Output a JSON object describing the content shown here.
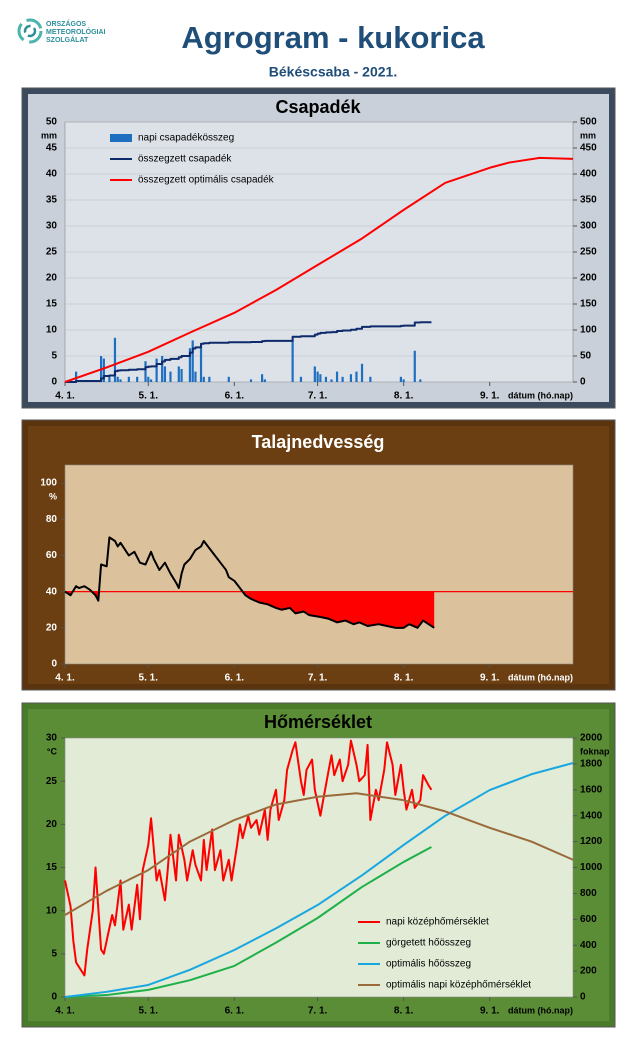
{
  "header": {
    "logo": [
      "ORSZÁGOS",
      "METEOROLÓGIAI",
      "SZOLGÁLAT"
    ],
    "title": "Agrogram - kukorica",
    "subtitle": "Békéscsaba - 2021."
  },
  "chart_data": [
    {
      "type": "combo",
      "title": "Csapadék",
      "background": "#3b4a5d",
      "panel_color": "#c9d0d9",
      "plot_background": "#dde2e9",
      "text_color": "#000000",
      "grid": true,
      "legend": "upper left",
      "xlim": [
        0,
        183
      ],
      "xticks": [
        {
          "value": 0,
          "label": "4. 1."
        },
        {
          "value": 30,
          "label": "5. 1."
        },
        {
          "value": 61,
          "label": "6. 1."
        },
        {
          "value": 91,
          "label": "7. 1."
        },
        {
          "value": 122,
          "label": "8. 1."
        },
        {
          "value": 153,
          "label": "9. 1."
        }
      ],
      "xlabel": "dátum (hó.nap)",
      "ylim": [
        0,
        50
      ],
      "yticks": [
        0,
        5,
        10,
        15,
        20,
        25,
        30,
        35,
        40,
        45,
        50
      ],
      "ylabel": "mm",
      "y2lim": [
        0,
        500
      ],
      "y2ticks": [
        0,
        50,
        100,
        150,
        200,
        250,
        300,
        350,
        400,
        450,
        500
      ],
      "y2label": "mm",
      "series": [
        {
          "name": "napi csapadékösszeg",
          "type": "bar",
          "color": "#1f6fc0",
          "x": [
            4,
            13,
            14,
            16,
            18,
            19,
            20,
            23,
            26,
            29,
            30,
            31,
            33,
            35,
            36,
            38,
            41,
            42,
            45,
            46,
            47,
            49,
            50,
            52,
            59,
            67,
            71,
            72,
            82,
            85,
            90,
            91,
            92,
            94,
            96,
            98,
            100,
            103,
            105,
            107,
            110,
            121,
            122,
            126,
            128
          ],
          "values": [
            2,
            5,
            4.5,
            1,
            8.5,
            1,
            0.5,
            1,
            1,
            4,
            1,
            0.5,
            4.5,
            5,
            3,
            2,
            3,
            2.5,
            6.5,
            8,
            2,
            7,
            1,
            1,
            1,
            0.5,
            1.5,
            0.5,
            8,
            1,
            3,
            2,
            1.5,
            1,
            0.5,
            2,
            1,
            1.5,
            2,
            3.5,
            1,
            1,
            0.5,
            6,
            0.5
          ]
        },
        {
          "name": "összegzett csapadék",
          "type": "step",
          "axis": "y2",
          "color": "#0d2a6b",
          "x": [
            0,
            4,
            13,
            14,
            16,
            18,
            19,
            20,
            23,
            26,
            29,
            30,
            31,
            33,
            35,
            36,
            38,
            41,
            42,
            45,
            46,
            47,
            49,
            50,
            52,
            59,
            67,
            71,
            72,
            82,
            85,
            90,
            91,
            92,
            94,
            96,
            98,
            100,
            103,
            105,
            107,
            110,
            121,
            122,
            126,
            128,
            132
          ],
          "values": [
            0,
            2,
            7,
            11.5,
            12.5,
            21,
            22,
            22.5,
            23.5,
            24.5,
            28.5,
            29.5,
            30,
            34.5,
            39.5,
            42.5,
            44.5,
            47.5,
            50,
            56.5,
            64.5,
            66.5,
            73.5,
            74.5,
            75.5,
            76.5,
            77,
            78.5,
            79,
            87,
            88,
            91,
            93,
            94.5,
            95.5,
            96,
            98,
            99,
            100.5,
            102.5,
            106,
            107,
            108,
            108.5,
            114.5,
            115,
            115
          ]
        },
        {
          "name": "összegzett optimális  csapadék",
          "type": "line",
          "axis": "y2",
          "color": "#ff0000",
          "x": [
            0,
            15,
            30,
            45,
            61,
            76,
            91,
            107,
            122,
            137,
            153,
            160,
            171,
            183
          ],
          "values": [
            0,
            28,
            58,
            95,
            133,
            177,
            225,
            276,
            331,
            383,
            412,
            422,
            431,
            429
          ]
        }
      ]
    },
    {
      "type": "line",
      "title": "Talajnedvesség",
      "background": "#5a340f",
      "panel_color": "#6b3f12",
      "plot_background": "#dcc29c",
      "text_color": "#ffffff",
      "grid": false,
      "xlim": [
        0,
        183
      ],
      "xticks": [
        {
          "value": 0,
          "label": "4. 1."
        },
        {
          "value": 30,
          "label": "5. 1."
        },
        {
          "value": 61,
          "label": "6. 1."
        },
        {
          "value": 91,
          "label": "7. 1."
        },
        {
          "value": 122,
          "label": "8. 1."
        },
        {
          "value": 153,
          "label": "9. 1."
        }
      ],
      "xlabel": "dátum (hó.nap)",
      "ylim": [
        0,
        110
      ],
      "yticks": [
        0,
        20,
        40,
        60,
        80,
        100
      ],
      "ylabel": "%",
      "threshold": 40,
      "threshold_color": "#ff0000",
      "fill_color": "#ff0000",
      "color": "#000000",
      "x": [
        0,
        2,
        4,
        5,
        7,
        9,
        11,
        12,
        13,
        15,
        16,
        18,
        19,
        20,
        23,
        25,
        27,
        29,
        31,
        32,
        34,
        36,
        38,
        40,
        41,
        42,
        43,
        45,
        47,
        49,
        50,
        52,
        54,
        56,
        58,
        59,
        61,
        63,
        65,
        67,
        70,
        73,
        76,
        78,
        81,
        83,
        86,
        88,
        92,
        95,
        98,
        101,
        104,
        106,
        109,
        113,
        116,
        119,
        122,
        124,
        127,
        129,
        131,
        133
      ],
      "values": [
        40,
        38,
        43,
        42,
        43,
        41,
        38,
        35,
        55,
        54,
        70,
        68,
        65,
        67,
        60,
        62,
        56,
        55,
        62,
        58,
        52,
        56,
        50,
        45,
        42,
        50,
        55,
        58,
        63,
        65,
        68,
        64,
        60,
        56,
        52,
        48,
        46,
        42,
        38,
        36,
        34,
        33,
        31,
        30,
        31,
        28,
        29,
        27,
        26,
        25,
        23,
        24,
        22,
        23,
        21,
        22,
        21,
        20,
        20,
        22,
        20,
        24,
        22,
        20
      ]
    },
    {
      "type": "line",
      "title": "Hőmérséklet",
      "background": "#4a7b2a",
      "panel_color": "#5b8d36",
      "plot_background": "#e1ebd6",
      "text_color": "#000000",
      "grid": false,
      "legend": "lower right",
      "xlim": [
        0,
        183
      ],
      "xticks": [
        {
          "value": 0,
          "label": "4. 1."
        },
        {
          "value": 30,
          "label": "5. 1."
        },
        {
          "value": 61,
          "label": "6. 1."
        },
        {
          "value": 91,
          "label": "7. 1."
        },
        {
          "value": 122,
          "label": "8. 1."
        },
        {
          "value": 153,
          "label": "9. 1."
        }
      ],
      "xlabel": "dátum (hó.nap)",
      "ylim": [
        0,
        30
      ],
      "yticks": [
        0,
        5,
        10,
        15,
        20,
        25,
        30
      ],
      "ylabel": "°C",
      "y2lim": [
        0,
        2000
      ],
      "y2ticks": [
        0,
        200,
        400,
        600,
        800,
        1000,
        1200,
        1400,
        1600,
        1800,
        2000
      ],
      "y2label": "foknap",
      "series": [
        {
          "name": "napi középhőmérséklet",
          "type": "line",
          "color": "#ff0000",
          "x": [
            0,
            2,
            3,
            4,
            5,
            7,
            8,
            10,
            11,
            13,
            14,
            15,
            17,
            18,
            20,
            21,
            23,
            24,
            26,
            27,
            28,
            30,
            31,
            33,
            34,
            36,
            37,
            38,
            40,
            41,
            43,
            44,
            46,
            47,
            49,
            50,
            51,
            53,
            54,
            56,
            57,
            59,
            60,
            62,
            63,
            64,
            66,
            67,
            69,
            70,
            72,
            73,
            74,
            76,
            77,
            79,
            80,
            82,
            83,
            85,
            86,
            87,
            89,
            90,
            92,
            93,
            95,
            96,
            97,
            99,
            100,
            102,
            103,
            105,
            106,
            108,
            109,
            110,
            112,
            113,
            115,
            116,
            118,
            119,
            121,
            122,
            123,
            125,
            126,
            128,
            129,
            131,
            132
          ],
          "values": [
            13.5,
            10.5,
            6.5,
            4,
            3.5,
            2.5,
            5.5,
            10,
            15,
            5.5,
            5,
            6.5,
            9.5,
            8.3,
            13.5,
            7.8,
            10.7,
            7.8,
            13,
            9,
            14.7,
            17.6,
            20.7,
            13.5,
            14.7,
            11.2,
            14.7,
            18.8,
            13.5,
            18.8,
            15.9,
            13.5,
            17,
            15.3,
            13.5,
            18.2,
            14.7,
            19.4,
            14.7,
            17,
            13.5,
            15.9,
            13.5,
            17.6,
            20,
            18.4,
            21,
            19.6,
            20.5,
            18.8,
            21.7,
            18.2,
            21.7,
            24,
            20.5,
            22.8,
            26.3,
            28.6,
            29.5,
            25,
            23.4,
            26.3,
            27.5,
            24,
            21,
            22.8,
            26.3,
            28,
            25.7,
            27.5,
            25,
            26.9,
            29.7,
            26.9,
            25,
            25.7,
            29.2,
            20.5,
            24,
            22.8,
            26.3,
            29.5,
            26.9,
            23.4,
            26.9,
            24,
            21.7,
            24,
            21.9,
            22.8,
            25.7,
            24.5,
            24
          ]
        },
        {
          "name": "görgetett hőösszeg",
          "type": "line",
          "axis": "y2",
          "color": "#1fb04a",
          "x": [
            0,
            15,
            30,
            45,
            61,
            76,
            91,
            107,
            122,
            132
          ],
          "values": [
            0,
            15,
            55,
            130,
            240,
            420,
            610,
            850,
            1043,
            1158
          ]
        },
        {
          "name": "optimális hőösszeg",
          "type": "line",
          "axis": "y2",
          "color": "#1aa7e0",
          "x": [
            0,
            15,
            30,
            45,
            61,
            76,
            91,
            107,
            122,
            137,
            153,
            168,
            183
          ],
          "values": [
            0,
            40,
            93,
            210,
            363,
            530,
            710,
            940,
            1174,
            1400,
            1598,
            1720,
            1807
          ]
        },
        {
          "name": "optimális napi középhőmérséklet",
          "type": "line",
          "color": "#9a6a3a",
          "x": [
            0,
            15,
            30,
            45,
            61,
            76,
            91,
            105,
            122,
            137,
            153,
            168,
            183
          ],
          "values": [
            9.5,
            12.3,
            14.7,
            18,
            20.5,
            22.3,
            23.2,
            23.6,
            22.8,
            21.5,
            19.6,
            18,
            15.9
          ]
        }
      ]
    }
  ]
}
